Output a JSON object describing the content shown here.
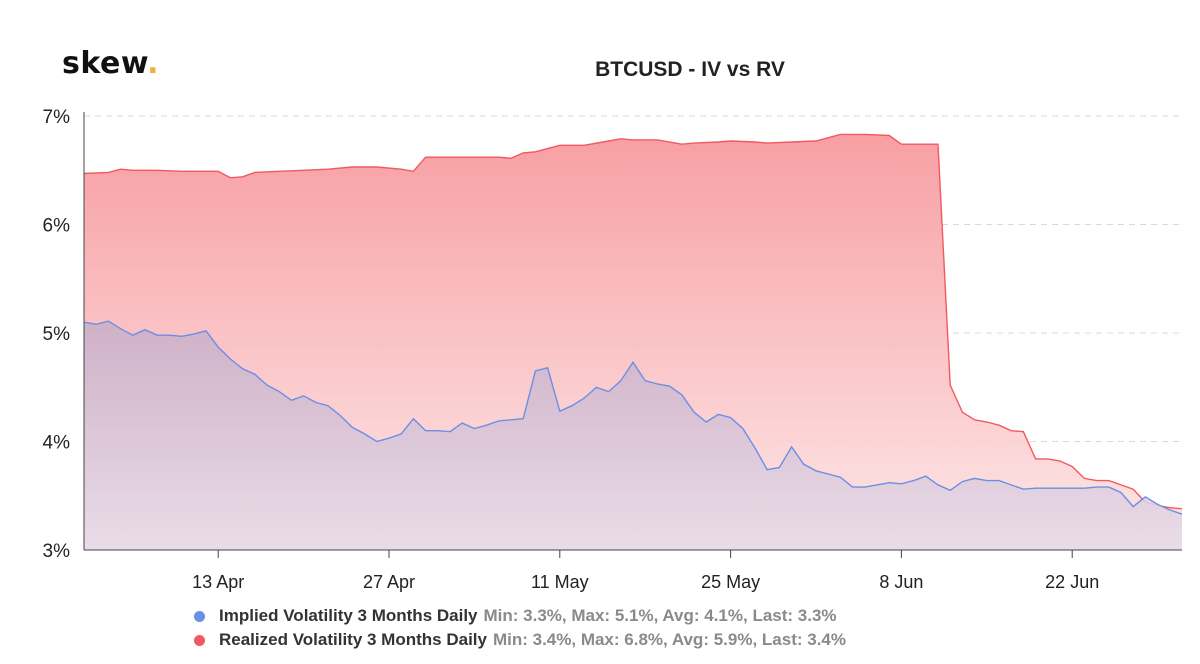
{
  "logo": {
    "text": "skew",
    "dot": "."
  },
  "chart_data": {
    "type": "area",
    "title": "BTCUSD - IV vs RV",
    "xlabel": "",
    "ylabel": "",
    "x_start": "2020-04-02",
    "x_end": "2020-07-01",
    "ylim": [
      3,
      7
    ],
    "y_ticks": [
      "3%",
      "4%",
      "5%",
      "6%",
      "7%"
    ],
    "x_ticks": [
      {
        "label": "13 Apr",
        "date": "2020-04-13"
      },
      {
        "label": "27 Apr",
        "date": "2020-04-27"
      },
      {
        "label": "11 May",
        "date": "2020-05-11"
      },
      {
        "label": "25 May",
        "date": "2020-05-25"
      },
      {
        "label": "8 Jun",
        "date": "2020-06-08"
      },
      {
        "label": "22 Jun",
        "date": "2020-06-22"
      }
    ],
    "grid": true,
    "legend_position": "bottom",
    "series": [
      {
        "name": "Realized Volatility 3 Months Daily",
        "stats": "Min: 3.4%, Max: 6.8%, Avg: 5.9%, Last: 3.4%",
        "color": "#f05a5f",
        "points": [
          [
            "2020-04-02",
            6.47
          ],
          [
            "2020-04-04",
            6.48
          ],
          [
            "2020-04-05",
            6.51
          ],
          [
            "2020-04-06",
            6.5
          ],
          [
            "2020-04-08",
            6.5
          ],
          [
            "2020-04-10",
            6.49
          ],
          [
            "2020-04-12",
            6.49
          ],
          [
            "2020-04-13",
            6.49
          ],
          [
            "2020-04-14",
            6.43
          ],
          [
            "2020-04-15",
            6.44
          ],
          [
            "2020-04-16",
            6.48
          ],
          [
            "2020-04-18",
            6.49
          ],
          [
            "2020-04-20",
            6.5
          ],
          [
            "2020-04-22",
            6.51
          ],
          [
            "2020-04-24",
            6.53
          ],
          [
            "2020-04-26",
            6.53
          ],
          [
            "2020-04-28",
            6.51
          ],
          [
            "2020-04-29",
            6.49
          ],
          [
            "2020-04-30",
            6.62
          ],
          [
            "2020-05-02",
            6.62
          ],
          [
            "2020-05-04",
            6.62
          ],
          [
            "2020-05-06",
            6.62
          ],
          [
            "2020-05-07",
            6.61
          ],
          [
            "2020-05-08",
            6.66
          ],
          [
            "2020-05-09",
            6.67
          ],
          [
            "2020-05-11",
            6.73
          ],
          [
            "2020-05-13",
            6.73
          ],
          [
            "2020-05-15",
            6.77
          ],
          [
            "2020-05-16",
            6.79
          ],
          [
            "2020-05-17",
            6.78
          ],
          [
            "2020-05-19",
            6.78
          ],
          [
            "2020-05-21",
            6.74
          ],
          [
            "2020-05-22",
            6.75
          ],
          [
            "2020-05-24",
            6.76
          ],
          [
            "2020-05-25",
            6.77
          ],
          [
            "2020-05-27",
            6.76
          ],
          [
            "2020-05-28",
            6.75
          ],
          [
            "2020-05-30",
            6.76
          ],
          [
            "2020-06-01",
            6.77
          ],
          [
            "2020-06-03",
            6.83
          ],
          [
            "2020-06-05",
            6.83
          ],
          [
            "2020-06-07",
            6.82
          ],
          [
            "2020-06-08",
            6.74
          ],
          [
            "2020-06-10",
            6.74
          ],
          [
            "2020-06-11",
            6.74
          ],
          [
            "2020-06-12",
            4.52
          ],
          [
            "2020-06-13",
            4.27
          ],
          [
            "2020-06-14",
            4.2
          ],
          [
            "2020-06-15",
            4.18
          ],
          [
            "2020-06-16",
            4.15
          ],
          [
            "2020-06-17",
            4.1
          ],
          [
            "2020-06-18",
            4.09
          ],
          [
            "2020-06-19",
            3.84
          ],
          [
            "2020-06-20",
            3.84
          ],
          [
            "2020-06-21",
            3.82
          ],
          [
            "2020-06-22",
            3.77
          ],
          [
            "2020-06-23",
            3.66
          ],
          [
            "2020-06-24",
            3.64
          ],
          [
            "2020-06-25",
            3.64
          ],
          [
            "2020-06-26",
            3.6
          ],
          [
            "2020-06-27",
            3.56
          ],
          [
            "2020-06-28",
            3.44
          ],
          [
            "2020-06-29",
            3.41
          ],
          [
            "2020-06-30",
            3.39
          ],
          [
            "2020-07-01",
            3.38
          ]
        ]
      },
      {
        "name": "Implied Volatility 3 Months Daily",
        "stats": "Min: 3.3%, Max: 5.1%, Avg: 4.1%, Last: 3.3%",
        "color": "#6b8fe6",
        "points": [
          [
            "2020-04-02",
            5.1
          ],
          [
            "2020-04-03",
            5.08
          ],
          [
            "2020-04-04",
            5.11
          ],
          [
            "2020-04-05",
            5.04
          ],
          [
            "2020-04-06",
            4.98
          ],
          [
            "2020-04-07",
            5.03
          ],
          [
            "2020-04-08",
            4.98
          ],
          [
            "2020-04-09",
            4.98
          ],
          [
            "2020-04-10",
            4.97
          ],
          [
            "2020-04-11",
            4.99
          ],
          [
            "2020-04-12",
            5.02
          ],
          [
            "2020-04-13",
            4.87
          ],
          [
            "2020-04-14",
            4.76
          ],
          [
            "2020-04-15",
            4.67
          ],
          [
            "2020-04-16",
            4.62
          ],
          [
            "2020-04-17",
            4.52
          ],
          [
            "2020-04-18",
            4.46
          ],
          [
            "2020-04-19",
            4.38
          ],
          [
            "2020-04-20",
            4.42
          ],
          [
            "2020-04-21",
            4.36
          ],
          [
            "2020-04-22",
            4.33
          ],
          [
            "2020-04-23",
            4.24
          ],
          [
            "2020-04-24",
            4.13
          ],
          [
            "2020-04-25",
            4.07
          ],
          [
            "2020-04-26",
            4.0
          ],
          [
            "2020-04-27",
            4.03
          ],
          [
            "2020-04-28",
            4.07
          ],
          [
            "2020-04-29",
            4.21
          ],
          [
            "2020-04-30",
            4.1
          ],
          [
            "2020-05-01",
            4.1
          ],
          [
            "2020-05-02",
            4.09
          ],
          [
            "2020-05-03",
            4.17
          ],
          [
            "2020-05-04",
            4.12
          ],
          [
            "2020-05-05",
            4.15
          ],
          [
            "2020-05-06",
            4.19
          ],
          [
            "2020-05-07",
            4.2
          ],
          [
            "2020-05-08",
            4.21
          ],
          [
            "2020-05-09",
            4.65
          ],
          [
            "2020-05-10",
            4.68
          ],
          [
            "2020-05-11",
            4.28
          ],
          [
            "2020-05-12",
            4.33
          ],
          [
            "2020-05-13",
            4.4
          ],
          [
            "2020-05-14",
            4.5
          ],
          [
            "2020-05-15",
            4.46
          ],
          [
            "2020-05-16",
            4.56
          ],
          [
            "2020-05-17",
            4.73
          ],
          [
            "2020-05-18",
            4.56
          ],
          [
            "2020-05-19",
            4.53
          ],
          [
            "2020-05-20",
            4.51
          ],
          [
            "2020-05-21",
            4.43
          ],
          [
            "2020-05-22",
            4.27
          ],
          [
            "2020-05-23",
            4.18
          ],
          [
            "2020-05-24",
            4.25
          ],
          [
            "2020-05-25",
            4.22
          ],
          [
            "2020-05-26",
            4.12
          ],
          [
            "2020-05-27",
            3.94
          ],
          [
            "2020-05-28",
            3.74
          ],
          [
            "2020-05-29",
            3.76
          ],
          [
            "2020-05-30",
            3.95
          ],
          [
            "2020-05-31",
            3.79
          ],
          [
            "2020-06-01",
            3.73
          ],
          [
            "2020-06-02",
            3.7
          ],
          [
            "2020-06-03",
            3.67
          ],
          [
            "2020-06-04",
            3.58
          ],
          [
            "2020-06-05",
            3.58
          ],
          [
            "2020-06-06",
            3.6
          ],
          [
            "2020-06-07",
            3.62
          ],
          [
            "2020-06-08",
            3.61
          ],
          [
            "2020-06-09",
            3.64
          ],
          [
            "2020-06-10",
            3.68
          ],
          [
            "2020-06-11",
            3.6
          ],
          [
            "2020-06-12",
            3.55
          ],
          [
            "2020-06-13",
            3.63
          ],
          [
            "2020-06-14",
            3.66
          ],
          [
            "2020-06-15",
            3.64
          ],
          [
            "2020-06-16",
            3.64
          ],
          [
            "2020-06-17",
            3.6
          ],
          [
            "2020-06-18",
            3.56
          ],
          [
            "2020-06-19",
            3.57
          ],
          [
            "2020-06-20",
            3.57
          ],
          [
            "2020-06-21",
            3.57
          ],
          [
            "2020-06-22",
            3.57
          ],
          [
            "2020-06-23",
            3.57
          ],
          [
            "2020-06-24",
            3.58
          ],
          [
            "2020-06-25",
            3.58
          ],
          [
            "2020-06-26",
            3.53
          ],
          [
            "2020-06-27",
            3.4
          ],
          [
            "2020-06-28",
            3.49
          ],
          [
            "2020-06-29",
            3.42
          ],
          [
            "2020-06-30",
            3.37
          ],
          [
            "2020-07-01",
            3.33
          ]
        ]
      }
    ]
  }
}
